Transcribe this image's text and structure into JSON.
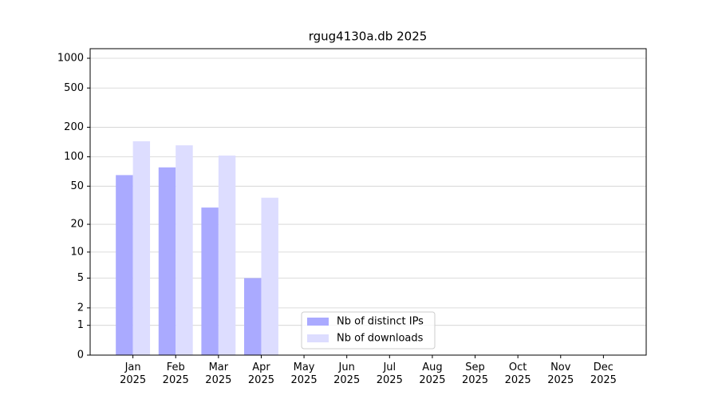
{
  "chart_data": {
    "type": "bar",
    "title": "rgug4130a.db 2025",
    "categories": [
      "Jan\n2025",
      "Feb\n2025",
      "Mar\n2025",
      "Apr\n2025",
      "May\n2025",
      "Jun\n2025",
      "Jul\n2025",
      "Aug\n2025",
      "Sep\n2025",
      "Oct\n2025",
      "Nov\n2025",
      "Dec\n2025"
    ],
    "series": [
      {
        "name": "Nb of distinct IPs",
        "color": "#aaaaff",
        "values": [
          65,
          78,
          30,
          5,
          0,
          0,
          0,
          0,
          0,
          0,
          0,
          0
        ]
      },
      {
        "name": "Nb of downloads",
        "color": "#ddddff",
        "values": [
          144,
          131,
          103,
          38,
          0,
          0,
          0,
          0,
          0,
          0,
          0,
          0
        ]
      }
    ],
    "yscale": "log1p",
    "ylim": [
      0,
      1250
    ],
    "yticks": [
      0,
      1,
      2,
      5,
      10,
      20,
      50,
      100,
      200,
      500,
      1000
    ],
    "grid": true,
    "legend": "lower center"
  }
}
